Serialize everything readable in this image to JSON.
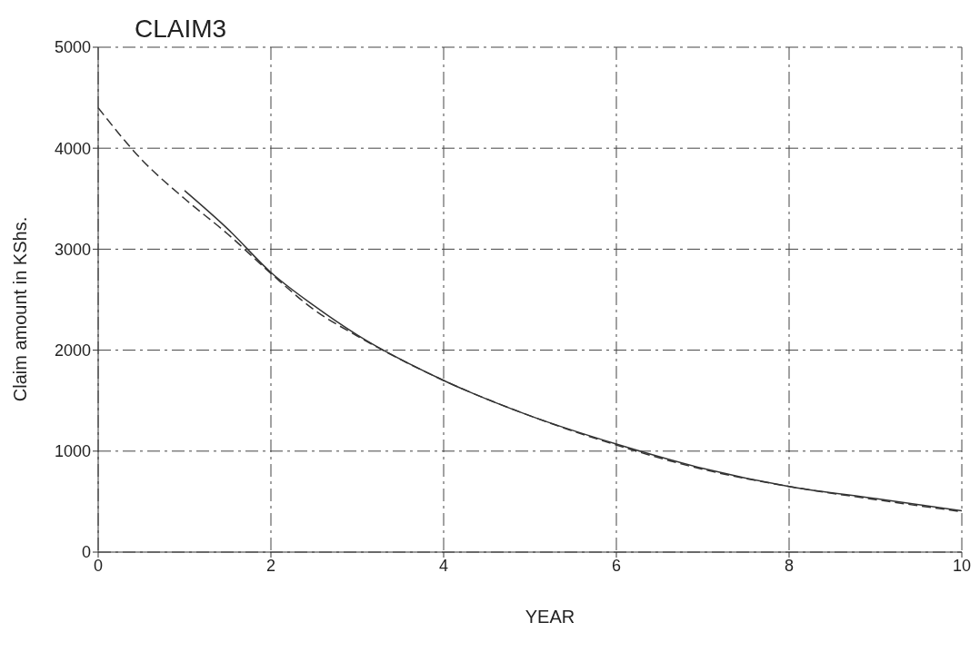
{
  "chart_data": {
    "type": "line",
    "title": "CLAIM3",
    "xlabel": "YEAR",
    "ylabel": "Claim amount in KShs.",
    "xlim": [
      0,
      10
    ],
    "xticks": [
      0,
      2,
      4,
      6,
      8,
      10
    ],
    "ylim": [
      0,
      5000
    ],
    "yticks": [
      0,
      1000,
      2000,
      3000,
      4000,
      5000
    ],
    "grid": true,
    "legend": false,
    "marker": "none",
    "series": [
      {
        "color": "#333333",
        "line_style": "solid",
        "x": [
          1,
          1.5,
          2,
          2.5,
          3,
          4,
          5,
          6,
          7,
          8,
          9,
          10
        ],
        "values": [
          3580,
          3200,
          2770,
          2440,
          2150,
          1700,
          1350,
          1070,
          830,
          650,
          530,
          410
        ]
      },
      {
        "color": "#333333",
        "line_style": "dashed",
        "x": [
          0,
          0.5,
          1,
          1.5,
          2,
          2.5,
          3,
          4,
          5,
          6,
          7,
          8,
          9,
          10
        ],
        "values": [
          4400,
          3890,
          3500,
          3150,
          2760,
          2400,
          2140,
          1700,
          1350,
          1060,
          820,
          650,
          520,
          400
        ]
      }
    ]
  }
}
